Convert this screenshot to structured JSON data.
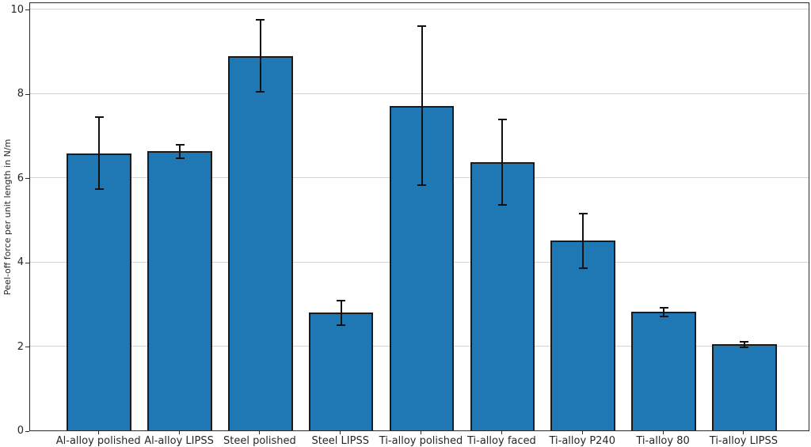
{
  "chart_data": {
    "type": "bar",
    "categories": [
      "Al-alloy polished",
      "Al-alloy LIPSS",
      "Steel polished",
      "Steel LIPSS",
      "Ti-alloy polished",
      "Ti-alloy faced",
      "Ti-alloy P240",
      "Ti-alloy 80",
      "Ti-alloy LIPSS"
    ],
    "values": [
      6.58,
      6.63,
      8.89,
      2.79,
      7.71,
      6.37,
      4.5,
      2.81,
      2.04
    ],
    "errors": [
      0.85,
      0.16,
      0.86,
      0.29,
      1.88,
      1.01,
      0.65,
      0.11,
      0.07
    ],
    "title": "",
    "xlabel": "",
    "ylabel": "Peel-off force per unit length in N/m",
    "ylim": [
      0,
      10.18
    ],
    "yticks": [
      0,
      2,
      4,
      6,
      8,
      10
    ],
    "grid": "horizontal-y",
    "legend": "none",
    "bar_color": "#1f77b4",
    "bar_edge_color": "#1b1b1b",
    "error_color": "#111111",
    "grid_color": "#d4d4d4"
  }
}
